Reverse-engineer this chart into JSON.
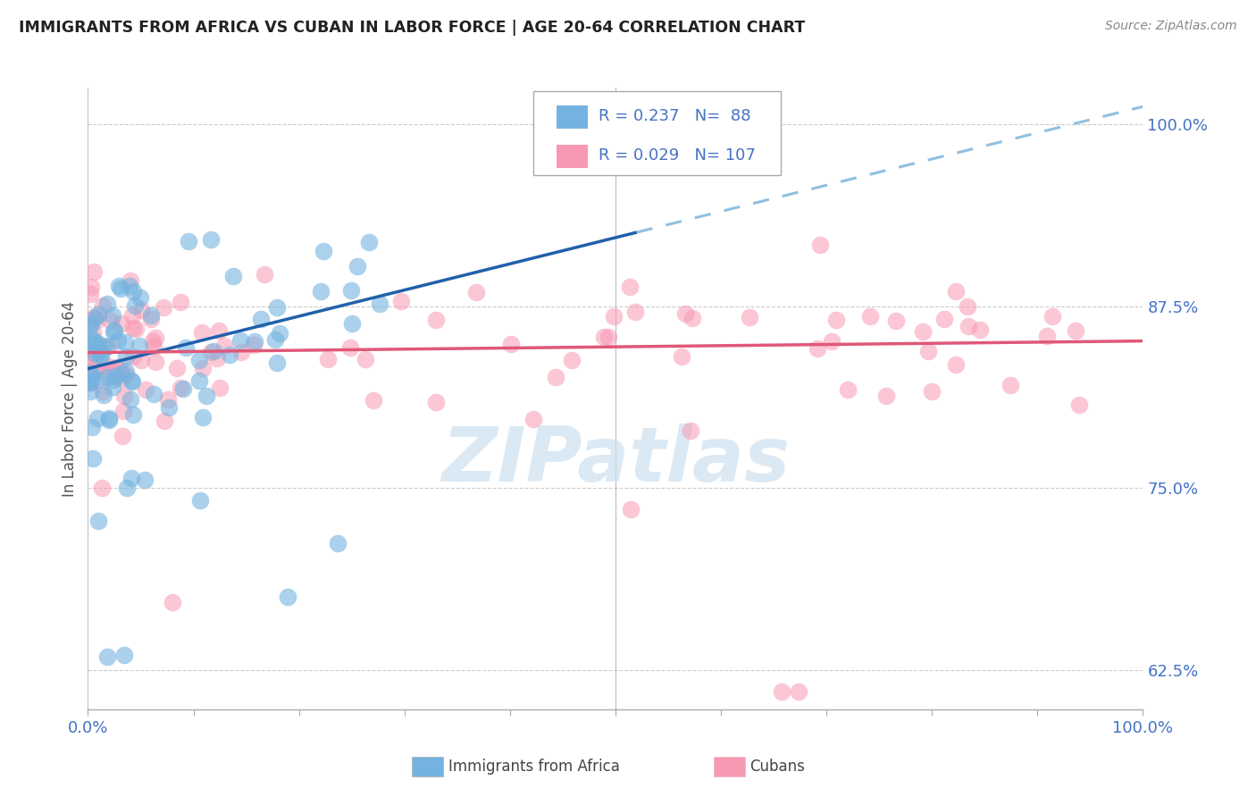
{
  "title": "IMMIGRANTS FROM AFRICA VS CUBAN IN LABOR FORCE | AGE 20-64 CORRELATION CHART",
  "source": "Source: ZipAtlas.com",
  "ylabel": "In Labor Force | Age 20-64",
  "xlim": [
    0.0,
    1.0
  ],
  "ylim": [
    0.598,
    1.025
  ],
  "yticks": [
    0.625,
    0.75,
    0.875,
    1.0
  ],
  "ytick_labels": [
    "62.5%",
    "75.0%",
    "87.5%",
    "100.0%"
  ],
  "legend_labels": [
    "Immigrants from Africa",
    "Cubans"
  ],
  "R_africa": 0.237,
  "N_africa": 88,
  "R_cuban": 0.029,
  "N_cuban": 107,
  "africa_color": "#74b3e0",
  "cuban_color": "#f899b4",
  "africa_line_color": "#2060aa",
  "africa_dash_color": "#90c0e0",
  "cuban_line_color": "#e05878",
  "background_color": "#ffffff",
  "watermark_text": "ZIPatlas",
  "watermark_color": "#cce0f0",
  "grid_color": "#cccccc",
  "title_color": "#222222",
  "source_color": "#888888",
  "axis_label_color": "#555555",
  "tick_color": "#4472c4",
  "legend_text_color": "#4472c4",
  "africa_seed": 42,
  "cuban_seed": 17
}
